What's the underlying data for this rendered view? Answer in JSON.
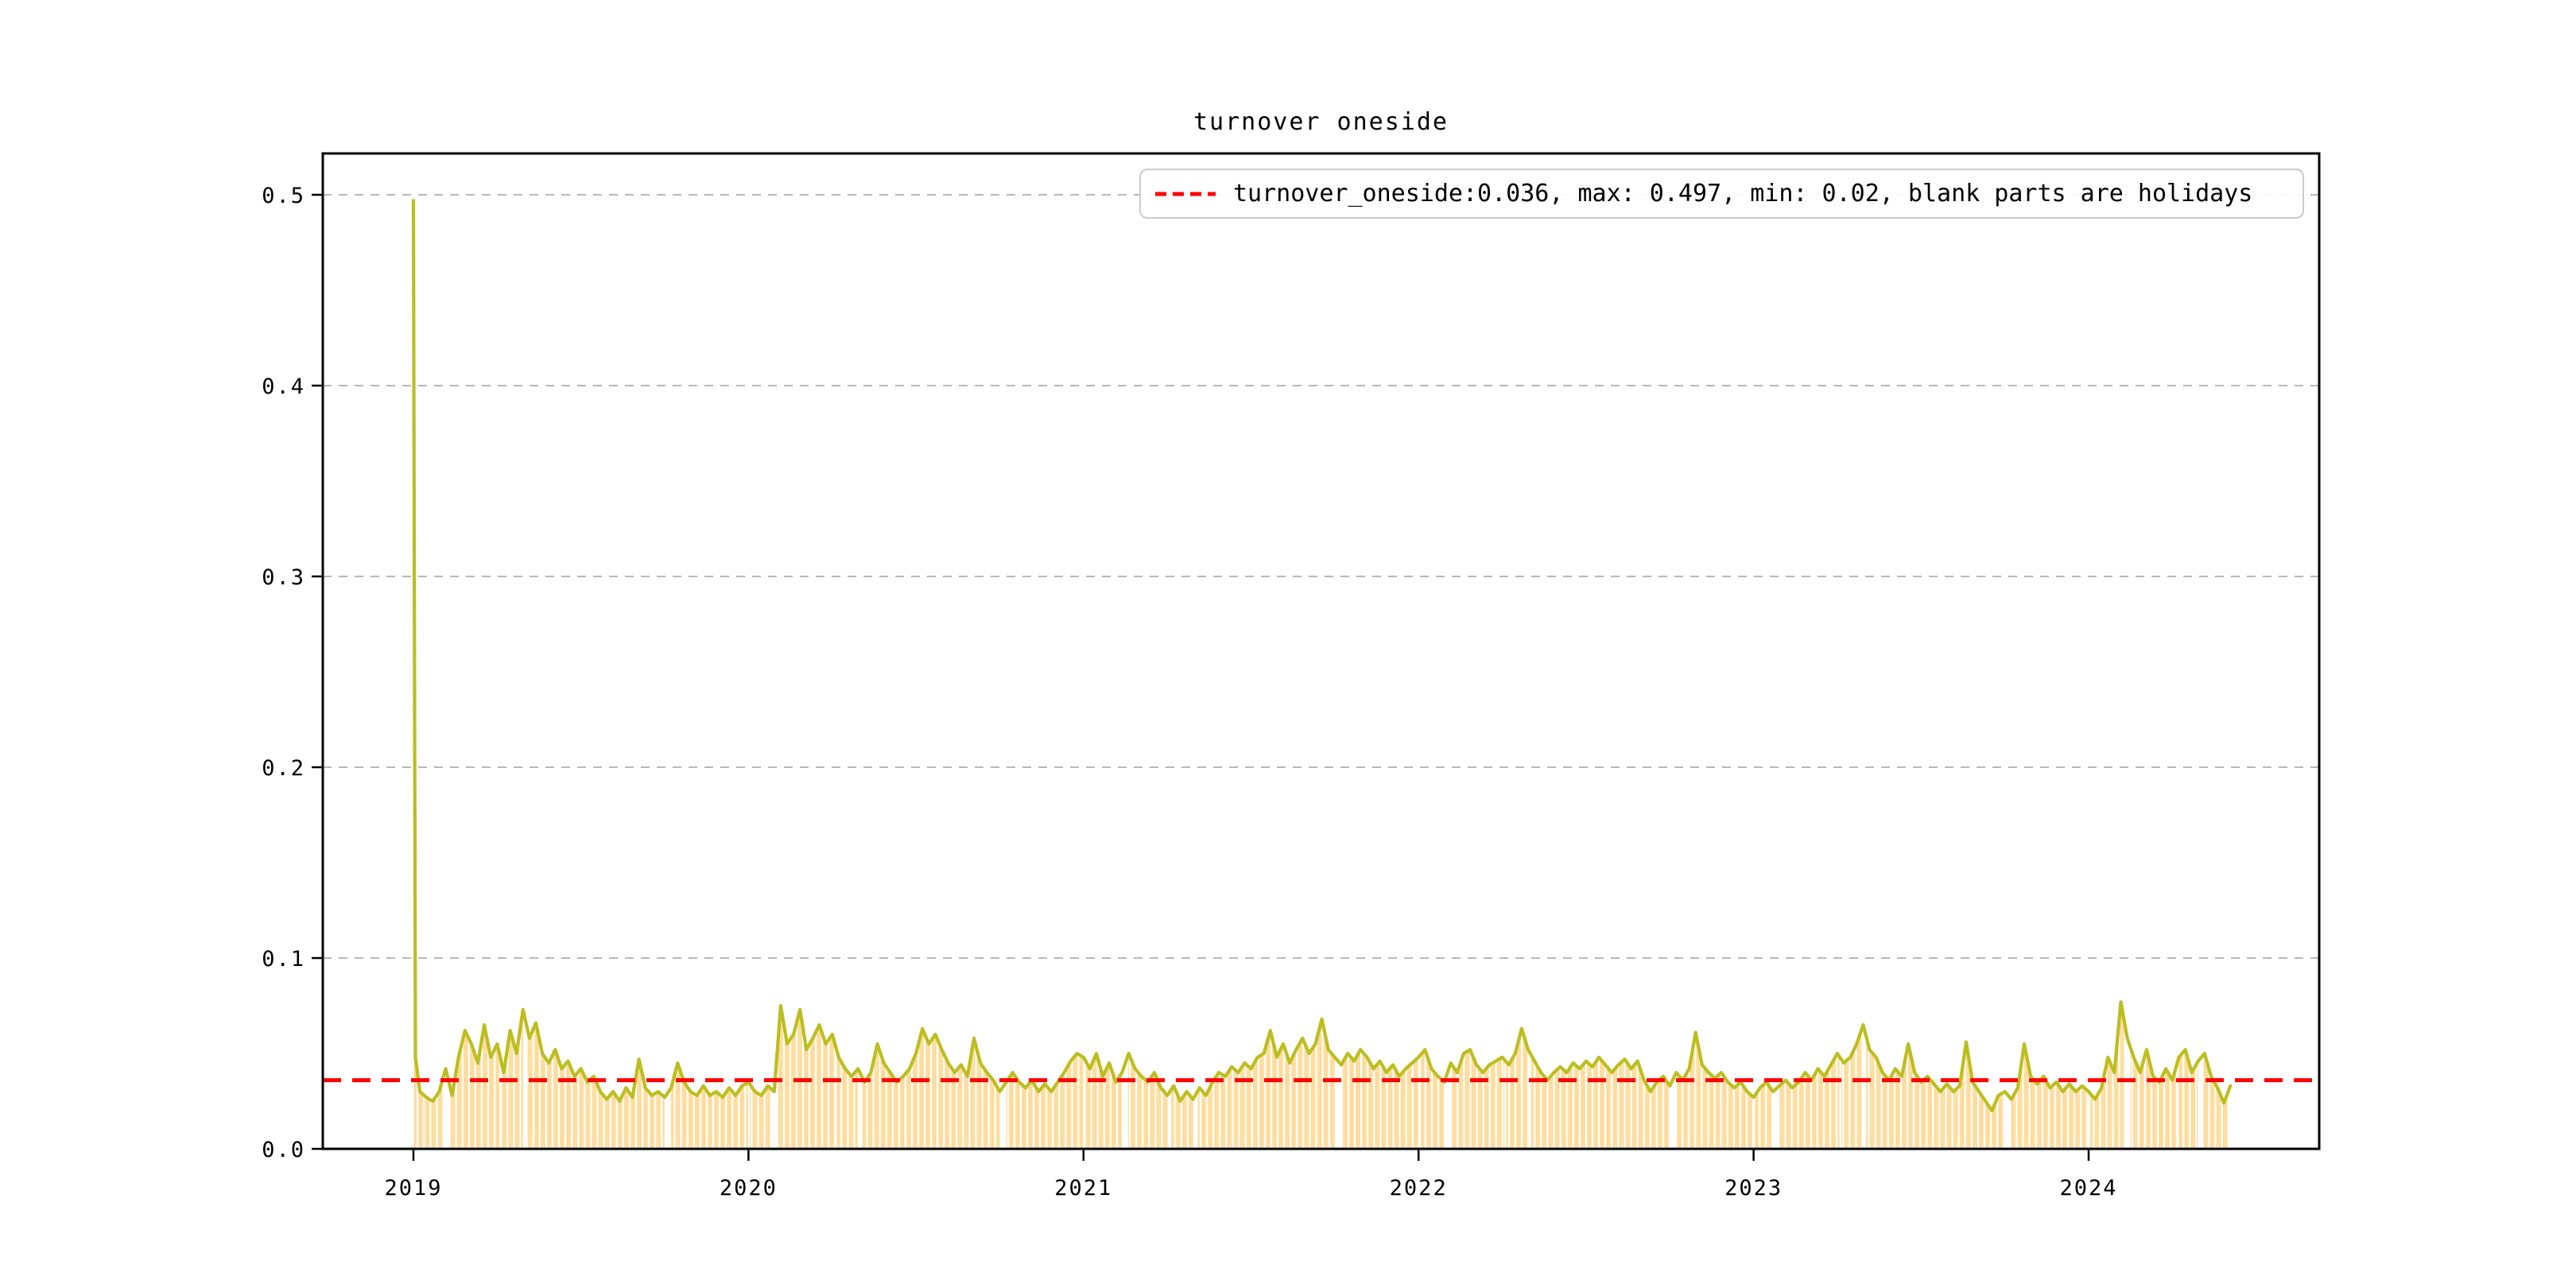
{
  "figure": {
    "background": "#ffffff"
  },
  "title": {
    "text": "turnover oneside"
  },
  "legend": {
    "label": "turnover_oneside:0.036, max: 0.497, min: 0.02, blank parts are holidays",
    "sample_line_color": "#ff0000",
    "position": "upper right"
  },
  "chart_data": {
    "type": "line",
    "title": "turnover oneside",
    "xlabel": "",
    "ylabel": "",
    "grid": "horizontal-dashed",
    "legend_position": "upper right",
    "ylim": [
      0.0,
      0.522
    ],
    "xlim_years": [
      2018.727,
      2024.688
    ],
    "x_tick_labels": [
      "2019",
      "2020",
      "2021",
      "2022",
      "2023",
      "2024"
    ],
    "x_tick_years": [
      2019,
      2020,
      2021,
      2022,
      2023,
      2024
    ],
    "y_tick_labels": [
      "0.0",
      "0.1",
      "0.2",
      "0.3",
      "0.4",
      "0.5"
    ],
    "y_tick_values": [
      0.0,
      0.1,
      0.2,
      0.3,
      0.4,
      0.5
    ],
    "stats": {
      "mean": 0.036,
      "max": 0.497,
      "min": 0.02
    },
    "mean_line": {
      "value": 0.036,
      "color": "#ff0000",
      "style": "dashed"
    },
    "colors": {
      "line": "#bcbe20",
      "bar": "rgba(255,165,0,0.32)",
      "grid": "#b8b8b8",
      "spine": "#000000"
    },
    "series_name": "turnover_oneside",
    "spike_points": [
      [
        2019.0,
        0.497
      ],
      [
        2019.006,
        0.048
      ]
    ],
    "weekly_series": {
      "start_year": 2019,
      "start_week": 1,
      "weeks_per_year": 52,
      "values": [
        0.03,
        0.027,
        0.025,
        0.03,
        0.042,
        0.028,
        0.048,
        0.062,
        0.055,
        0.045,
        0.065,
        0.048,
        0.055,
        0.04,
        0.062,
        0.05,
        0.073,
        0.058,
        0.066,
        0.05,
        0.045,
        0.052,
        0.042,
        0.046,
        0.038,
        0.042,
        0.035,
        0.038,
        0.03,
        0.026,
        0.03,
        0.025,
        0.032,
        0.027,
        0.047,
        0.032,
        0.028,
        0.03,
        0.027,
        0.032,
        0.045,
        0.035,
        0.03,
        0.028,
        0.033,
        0.028,
        0.03,
        0.027,
        0.032,
        0.028,
        0.033,
        0.035,
        0.03,
        0.028,
        0.033,
        0.03,
        0.075,
        0.055,
        0.06,
        0.073,
        0.052,
        0.058,
        0.065,
        0.055,
        0.06,
        0.048,
        0.042,
        0.038,
        0.042,
        0.035,
        0.04,
        0.055,
        0.045,
        0.04,
        0.035,
        0.038,
        0.042,
        0.05,
        0.063,
        0.055,
        0.06,
        0.052,
        0.045,
        0.04,
        0.044,
        0.038,
        0.058,
        0.045,
        0.04,
        0.036,
        0.03,
        0.035,
        0.04,
        0.035,
        0.032,
        0.036,
        0.03,
        0.034,
        0.03,
        0.035,
        0.04,
        0.046,
        0.05,
        0.048,
        0.042,
        0.05,
        0.038,
        0.045,
        0.035,
        0.04,
        0.05,
        0.042,
        0.038,
        0.035,
        0.04,
        0.032,
        0.028,
        0.033,
        0.025,
        0.03,
        0.026,
        0.032,
        0.028,
        0.035,
        0.04,
        0.038,
        0.043,
        0.04,
        0.045,
        0.042,
        0.048,
        0.05,
        0.062,
        0.048,
        0.055,
        0.045,
        0.052,
        0.058,
        0.05,
        0.055,
        0.068,
        0.052,
        0.048,
        0.044,
        0.05,
        0.046,
        0.052,
        0.048,
        0.042,
        0.046,
        0.04,
        0.044,
        0.038,
        0.042,
        0.045,
        0.048,
        0.052,
        0.042,
        0.038,
        0.035,
        0.045,
        0.04,
        0.05,
        0.052,
        0.044,
        0.04,
        0.044,
        0.046,
        0.048,
        0.044,
        0.05,
        0.063,
        0.052,
        0.046,
        0.04,
        0.036,
        0.04,
        0.043,
        0.04,
        0.045,
        0.042,
        0.046,
        0.043,
        0.048,
        0.044,
        0.04,
        0.044,
        0.047,
        0.042,
        0.046,
        0.036,
        0.03,
        0.035,
        0.038,
        0.033,
        0.04,
        0.036,
        0.042,
        0.061,
        0.044,
        0.04,
        0.037,
        0.04,
        0.035,
        0.032,
        0.035,
        0.03,
        0.027,
        0.032,
        0.035,
        0.03,
        0.033,
        0.036,
        0.032,
        0.035,
        0.04,
        0.036,
        0.042,
        0.038,
        0.044,
        0.05,
        0.045,
        0.048,
        0.055,
        0.065,
        0.052,
        0.048,
        0.04,
        0.036,
        0.042,
        0.038,
        0.055,
        0.04,
        0.035,
        0.038,
        0.034,
        0.03,
        0.034,
        0.03,
        0.033,
        0.056,
        0.035,
        0.03,
        0.025,
        0.02,
        0.028,
        0.03,
        0.026,
        0.032,
        0.055,
        0.038,
        0.034,
        0.038,
        0.032,
        0.035,
        0.03,
        0.034,
        0.03,
        0.033,
        0.03,
        0.026,
        0.032,
        0.048,
        0.04,
        0.077,
        0.058,
        0.048,
        0.04,
        0.052,
        0.038,
        0.035,
        0.042,
        0.036,
        0.048,
        0.052,
        0.04,
        0.046,
        0.05,
        0.038,
        0.032,
        0.024,
        0.033
      ]
    },
    "trading_days": {
      "start_date": "2019-01-02",
      "end_date": "2024-05-31",
      "skip_weekends": true
    },
    "holiday_gaps_decimal_years": [
      [
        2019.092,
        2019.112
      ],
      [
        2019.255,
        2019.263
      ],
      [
        2019.327,
        2019.338
      ],
      [
        2019.75,
        2019.769
      ],
      [
        2020.0,
        2020.003
      ],
      [
        2020.063,
        2020.09
      ],
      [
        2020.255,
        2020.263
      ],
      [
        2020.327,
        2020.341
      ],
      [
        2020.75,
        2020.769
      ],
      [
        2021.0,
        2021.003
      ],
      [
        2021.115,
        2021.134
      ],
      [
        2021.255,
        2021.263
      ],
      [
        2021.327,
        2021.341
      ],
      [
        2021.75,
        2021.769
      ],
      [
        2022.0,
        2022.008
      ],
      [
        2022.082,
        2022.101
      ],
      [
        2022.255,
        2022.263
      ],
      [
        2022.327,
        2022.336
      ],
      [
        2022.75,
        2022.769
      ],
      [
        2023.0,
        2023.005
      ],
      [
        2023.055,
        2023.074
      ],
      [
        2023.255,
        2023.263
      ],
      [
        2023.327,
        2023.336
      ],
      [
        2023.745,
        2023.764
      ],
      [
        2024.0,
        2024.003
      ],
      [
        2024.104,
        2024.123
      ],
      [
        2024.26,
        2024.268
      ],
      [
        2024.327,
        2024.341
      ]
    ]
  }
}
